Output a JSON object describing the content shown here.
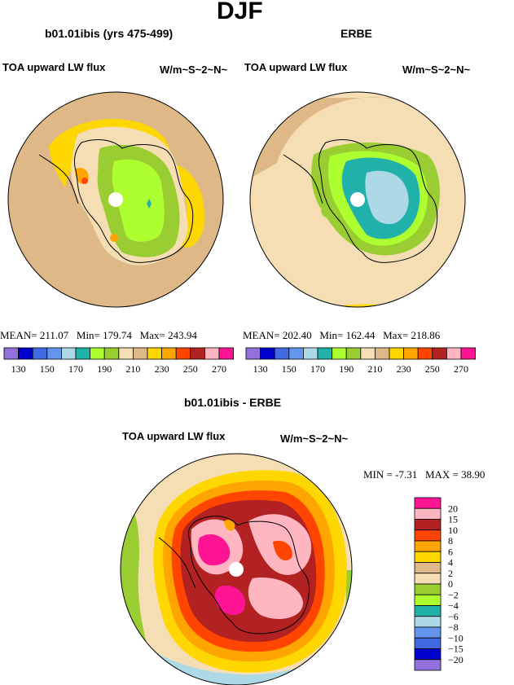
{
  "title": "DJF",
  "panels": [
    {
      "subtitle": "b01.01ibis (yrs 475-499)",
      "variable": "TOA upward LW flux",
      "units": "W/m~S~2~N~",
      "stats": {
        "mean": "211.07",
        "min": "179.74",
        "max": "243.94"
      }
    },
    {
      "subtitle": "ERBE",
      "variable": "TOA upward LW flux",
      "units": "W/m~S~2~N~",
      "stats": {
        "mean": "202.40",
        "min": "162.44",
        "max": "218.86"
      }
    },
    {
      "subtitle": "b01.01ibis - ERBE",
      "variable": "TOA upward LW flux",
      "units": "W/m~S~2~N~",
      "stats": {
        "min": "-7.31",
        "max": "38.90"
      }
    }
  ],
  "stat_labels": {
    "mean": "MEAN=",
    "min": "Min=",
    "max": "Max=",
    "min_upper": "MIN =",
    "max_upper": "MAX ="
  },
  "labelbar_abs": {
    "colors": [
      "#9370db",
      "#0000cd",
      "#4169e1",
      "#6495ed",
      "#add8e6",
      "#20b2aa",
      "#adff2f",
      "#9acd32",
      "#f5deb3",
      "#deb887",
      "#ffd700",
      "#ffa500",
      "#ff4500",
      "#b22222",
      "#ffb6c1",
      "#ff1493"
    ],
    "ticks": [
      "130",
      "150",
      "170",
      "190",
      "210",
      "230",
      "250",
      "270"
    ]
  },
  "labelbar_diff": {
    "colors": [
      "#ff1493",
      "#ffb6c1",
      "#b22222",
      "#ff4500",
      "#ffa500",
      "#ffd700",
      "#deb887",
      "#f5deb3",
      "#9acd32",
      "#adff2f",
      "#20b2aa",
      "#add8e6",
      "#6495ed",
      "#4169e1",
      "#0000cd",
      "#9370db"
    ],
    "labels": [
      "20",
      "15",
      "10",
      "8",
      "6",
      "4",
      "2",
      "0",
      "-2",
      "-4",
      "-6",
      "-8",
      "-10",
      "-15",
      "-20"
    ]
  },
  "chart_data": [
    {
      "type": "heatmap",
      "title": "b01.01ibis (yrs 475-499)",
      "variable": "TOA upward LW flux",
      "units": "W/m~S~2~N~",
      "levels": [
        130,
        140,
        150,
        160,
        170,
        180,
        190,
        200,
        210,
        220,
        230,
        240,
        250,
        260,
        270
      ],
      "mean": 211.07,
      "min": 179.74,
      "max": 243.94
    },
    {
      "type": "heatmap",
      "title": "ERBE",
      "variable": "TOA upward LW flux",
      "units": "W/m~S~2~N~",
      "levels": [
        130,
        140,
        150,
        160,
        170,
        180,
        190,
        200,
        210,
        220,
        230,
        240,
        250,
        260,
        270
      ],
      "mean": 202.4,
      "min": 162.44,
      "max": 218.86
    },
    {
      "type": "heatmap",
      "title": "b01.01ibis - ERBE",
      "variable": "TOA upward LW flux",
      "units": "W/m~S~2~N~",
      "levels": [
        -20,
        -15,
        -10,
        -8,
        -6,
        -4,
        -2,
        0,
        2,
        4,
        6,
        8,
        10,
        15,
        20
      ],
      "min": -7.31,
      "max": 38.9
    }
  ]
}
